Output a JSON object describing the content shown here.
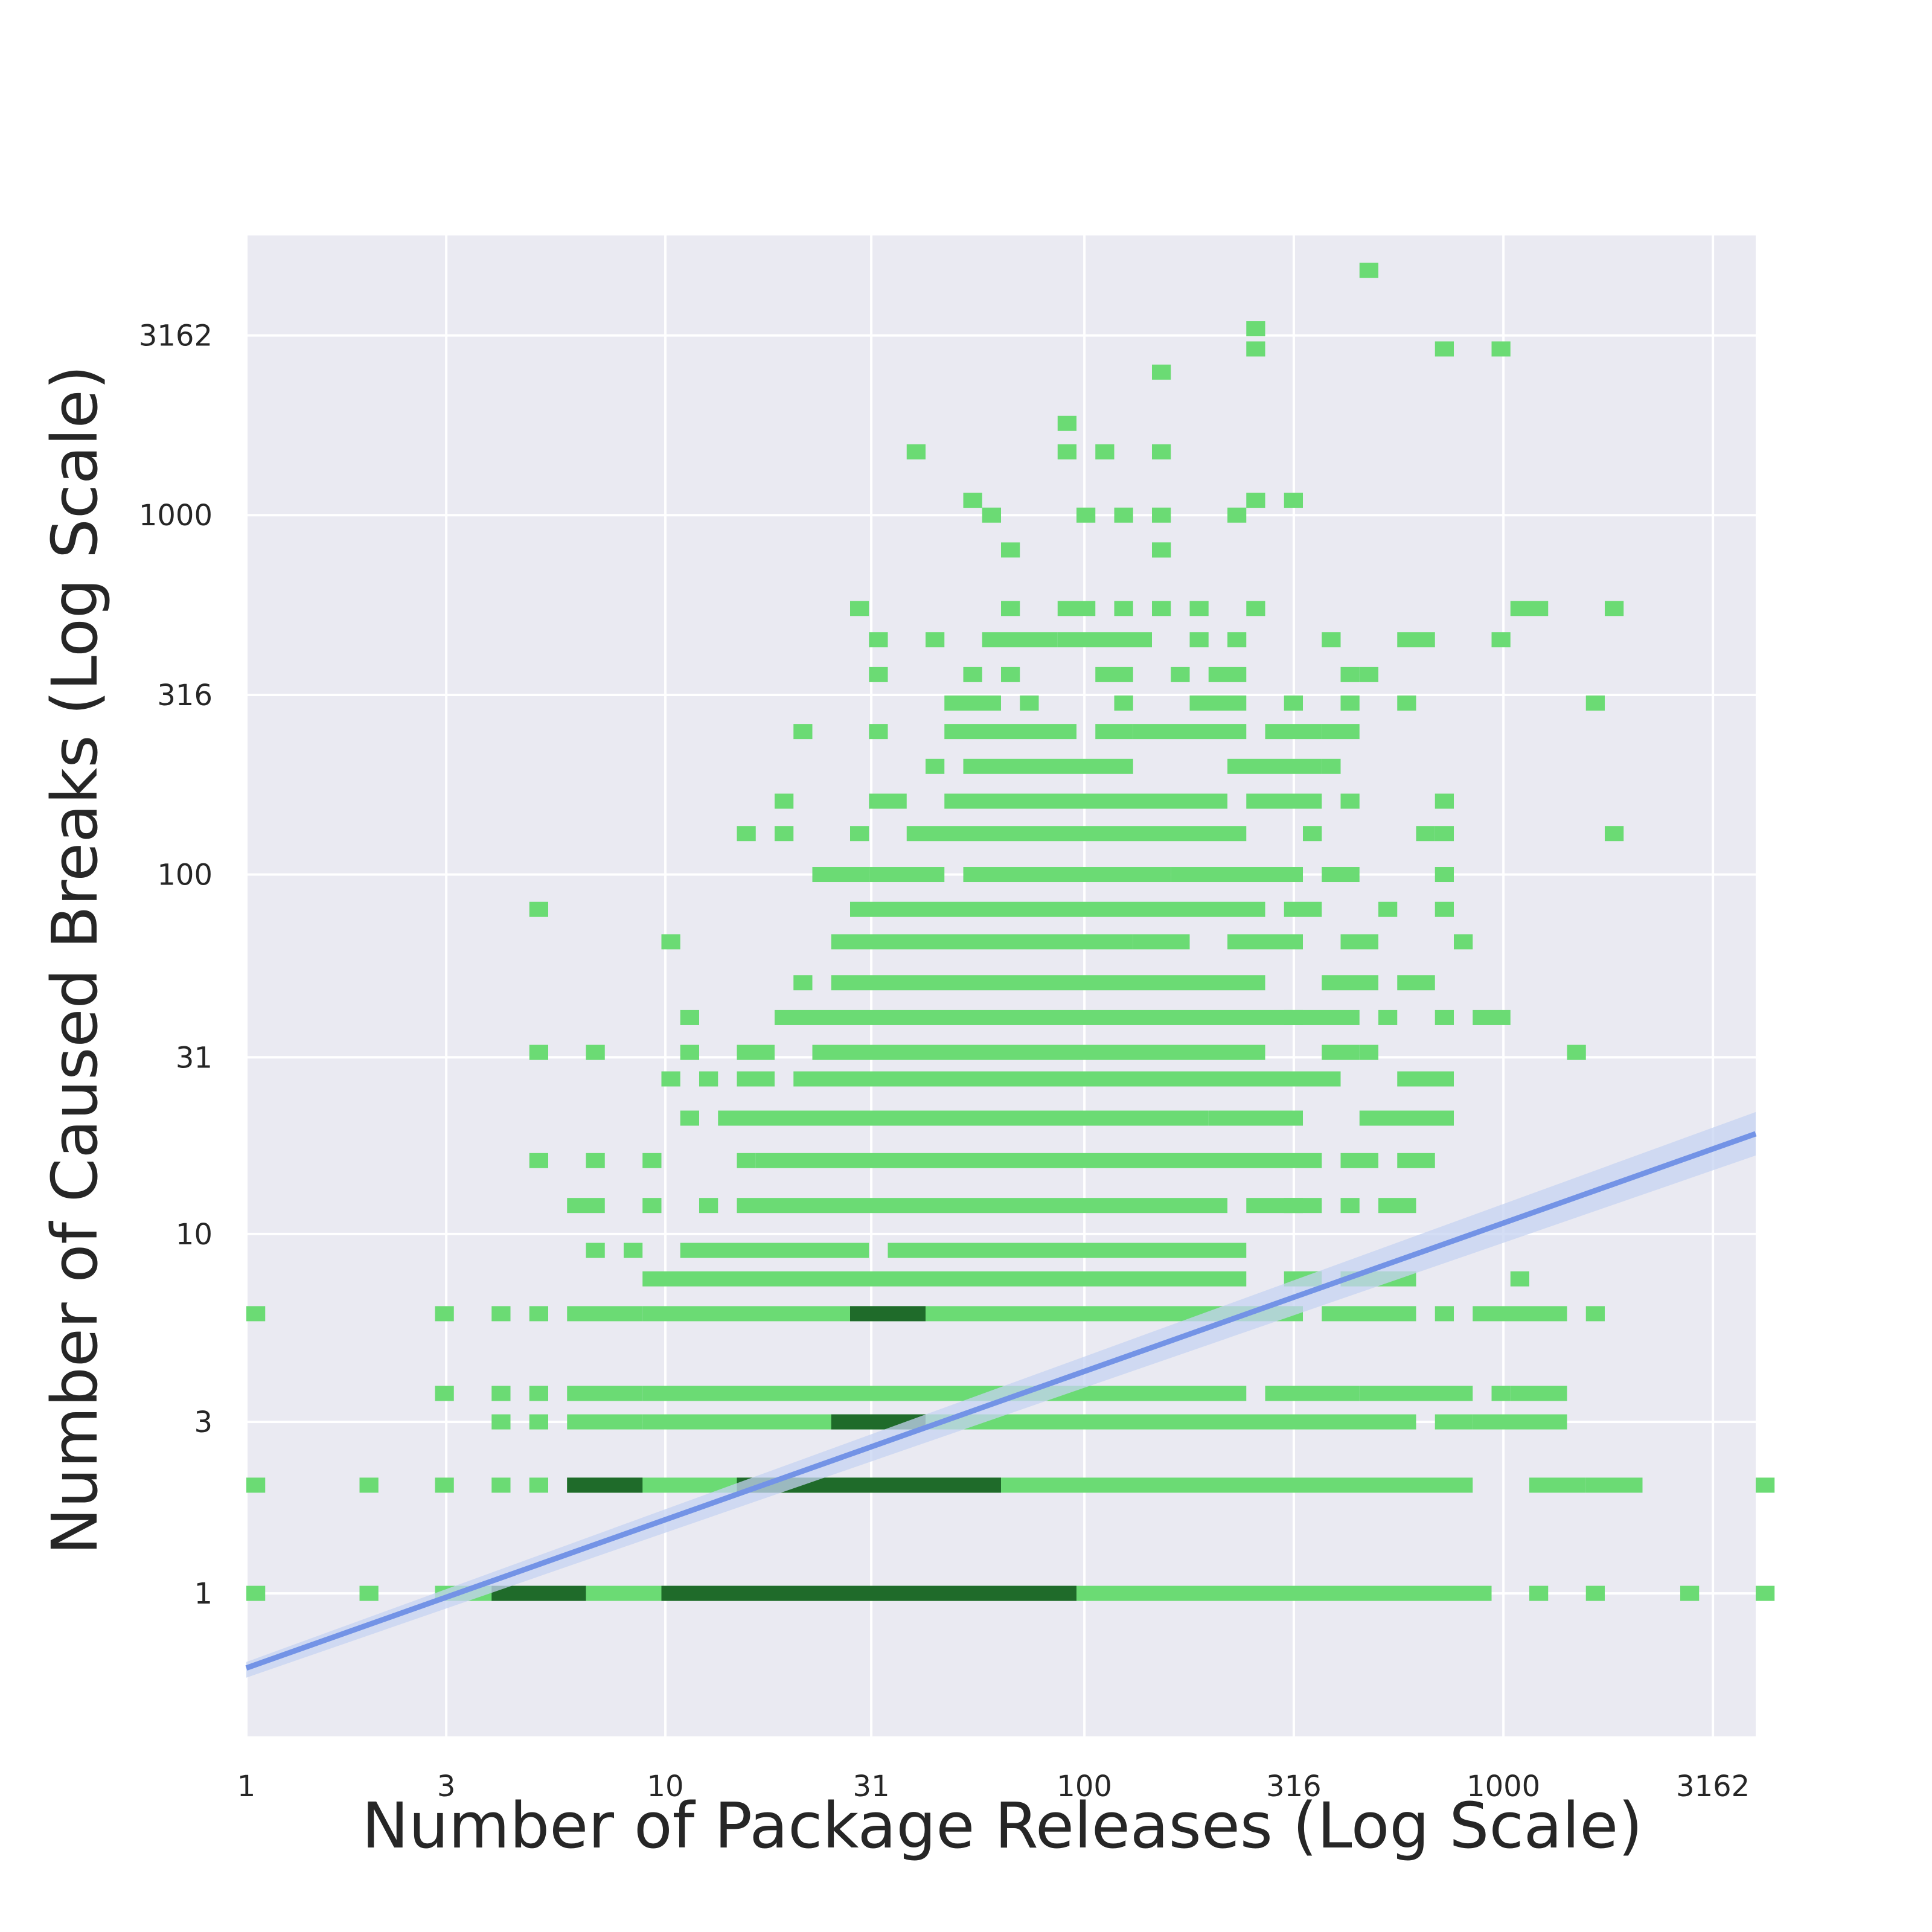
{
  "chart_data": {
    "type": "heatmap",
    "subtype": "2d-histogram-with-regression-line",
    "title": "",
    "xlabel": "Number of Package Releases (Log Scale)",
    "ylabel": "Number of Caused Breaks (Log Scale)",
    "x_scale": "log",
    "y_scale": "log",
    "xlim": [
      1,
      4000
    ],
    "ylim": [
      0.4,
      6000
    ],
    "x_ticks": [
      1,
      3,
      10,
      31,
      100,
      316,
      1000,
      3162
    ],
    "x_tick_labels": [
      "1",
      "3",
      "10",
      "31",
      "100",
      "316",
      "1000",
      "3162"
    ],
    "y_ticks": [
      1,
      3,
      10,
      31,
      100,
      316,
      1000,
      3162
    ],
    "y_tick_labels": [
      "1",
      "3",
      "10",
      "31",
      "100",
      "316",
      "1000",
      "3162"
    ],
    "grid": true,
    "background": "#eaeaf2",
    "grid_color": "#ffffff",
    "bin_color_light": "#6bdb74",
    "bin_color_dark": "#1f6b2a",
    "regression": {
      "x": [
        1,
        4000
      ],
      "y": [
        0.62,
        19
      ],
      "color": "#7393e6",
      "ci_color": "#c6d3f2"
    },
    "rows": [
      {
        "y": 1,
        "segments": [
          [
            1,
            1
          ],
          [
            2,
            2
          ],
          [
            3,
            900
          ],
          [
            1200,
            1200
          ],
          [
            1700,
            1700
          ],
          [
            2800,
            2800
          ],
          [
            4000,
            4000
          ]
        ],
        "dark": [
          [
            4,
            6
          ],
          [
            10,
            90
          ]
        ]
      },
      {
        "y": 2,
        "segments": [
          [
            1,
            1
          ],
          [
            2,
            2
          ],
          [
            3,
            3
          ],
          [
            4,
            4
          ],
          [
            5,
            5
          ],
          [
            6,
            800
          ],
          [
            1200,
            1500
          ],
          [
            1700,
            2000
          ],
          [
            4000,
            4000
          ]
        ],
        "dark": [
          [
            6,
            8
          ],
          [
            15,
            60
          ]
        ]
      },
      {
        "y": 3,
        "segments": [
          [
            4,
            4
          ],
          [
            5,
            5
          ],
          [
            6,
            8
          ],
          [
            9,
            320
          ],
          [
            350,
            600
          ],
          [
            700,
            800
          ],
          [
            900,
            1100
          ],
          [
            1200,
            1300
          ]
        ],
        "dark": [
          [
            25,
            40
          ]
        ]
      },
      {
        "y": 3.6,
        "segments": [
          [
            3,
            3
          ],
          [
            4,
            4
          ],
          [
            5,
            5
          ],
          [
            6,
            6
          ],
          [
            7,
            8
          ],
          [
            9,
            240
          ],
          [
            280,
            450
          ],
          [
            500,
            800
          ],
          [
            1000,
            1000
          ],
          [
            1150,
            1400
          ]
        ],
        "dark": []
      },
      {
        "y": 6,
        "segments": [
          [
            1,
            1
          ],
          [
            3,
            3
          ],
          [
            4,
            4
          ],
          [
            5,
            5
          ],
          [
            6,
            8
          ],
          [
            9,
            320
          ],
          [
            380,
            500
          ],
          [
            550,
            600
          ],
          [
            700,
            700
          ],
          [
            850,
            850
          ],
          [
            1000,
            1300
          ],
          [
            1600,
            1600
          ]
        ],
        "dark": [
          [
            30,
            40
          ]
        ]
      },
      {
        "y": 7.5,
        "segments": [
          [
            9,
            240
          ],
          [
            300,
            350
          ],
          [
            450,
            600
          ],
          [
            1100,
            1100
          ]
        ],
        "dark": []
      },
      {
        "y": 9,
        "segments": [
          [
            7,
            7
          ],
          [
            8,
            8
          ],
          [
            11,
            14
          ],
          [
            15,
            30
          ],
          [
            35,
            240
          ]
        ],
        "dark": []
      },
      {
        "y": 12,
        "segments": [
          [
            6,
            7
          ],
          [
            9,
            9
          ],
          [
            13,
            13
          ],
          [
            16,
            200
          ],
          [
            260,
            300
          ],
          [
            330,
            350
          ],
          [
            450,
            450
          ],
          [
            550,
            600
          ]
        ],
        "dark": []
      },
      {
        "y": 16,
        "segments": [
          [
            5,
            5
          ],
          [
            7,
            7
          ],
          [
            9,
            9
          ],
          [
            15,
            15
          ],
          [
            18,
            350
          ],
          [
            420,
            500
          ],
          [
            600,
            650
          ]
        ],
        "dark": []
      },
      {
        "y": 21,
        "segments": [
          [
            11,
            11
          ],
          [
            14,
            180
          ],
          [
            200,
            300
          ],
          [
            500,
            700
          ]
        ],
        "dark": []
      },
      {
        "y": 27,
        "segments": [
          [
            10,
            10
          ],
          [
            13,
            13
          ],
          [
            16,
            18
          ],
          [
            22,
            400
          ],
          [
            600,
            700
          ]
        ],
        "dark": []
      },
      {
        "y": 32,
        "segments": [
          [
            5,
            5
          ],
          [
            7,
            7
          ],
          [
            11,
            11
          ],
          [
            15,
            18
          ],
          [
            24,
            260
          ],
          [
            380,
            420
          ],
          [
            500,
            500
          ],
          [
            1500,
            1500
          ]
        ],
        "dark": []
      },
      {
        "y": 40,
        "segments": [
          [
            12,
            12
          ],
          [
            20,
            300
          ],
          [
            330,
            380
          ],
          [
            420,
            450
          ],
          [
            550,
            550
          ],
          [
            700,
            700
          ],
          [
            850,
            850
          ],
          [
            1000,
            1000
          ]
        ],
        "dark": []
      },
      {
        "y": 50,
        "segments": [
          [
            22,
            22
          ],
          [
            25,
            25
          ],
          [
            30,
            200
          ],
          [
            240,
            250
          ],
          [
            380,
            500
          ],
          [
            600,
            650
          ]
        ],
        "dark": []
      },
      {
        "y": 65,
        "segments": [
          [
            10,
            10
          ],
          [
            25,
            120
          ],
          [
            140,
            170
          ],
          [
            240,
            300
          ],
          [
            450,
            500
          ],
          [
            800,
            800
          ]
        ],
        "dark": []
      },
      {
        "y": 80,
        "segments": [
          [
            5,
            5
          ],
          [
            28,
            200
          ],
          [
            220,
            260
          ],
          [
            320,
            350
          ],
          [
            550,
            550
          ],
          [
            700,
            700
          ]
        ],
        "dark": []
      },
      {
        "y": 100,
        "segments": [
          [
            24,
            30
          ],
          [
            32,
            45
          ],
          [
            55,
            150
          ],
          [
            170,
            200
          ],
          [
            220,
            320
          ],
          [
            380,
            420
          ],
          [
            700,
            700
          ]
        ],
        "dark": []
      },
      {
        "y": 130,
        "segments": [
          [
            15,
            15
          ],
          [
            20,
            20
          ],
          [
            28,
            30
          ],
          [
            40,
            200
          ],
          [
            220,
            230
          ],
          [
            350,
            350
          ],
          [
            650,
            650
          ],
          [
            750,
            750
          ],
          [
            1800,
            1800
          ]
        ],
        "dark": []
      },
      {
        "y": 160,
        "segments": [
          [
            20,
            20
          ],
          [
            33,
            35
          ],
          [
            50,
            200
          ],
          [
            250,
            350
          ],
          [
            420,
            420
          ],
          [
            750,
            750
          ]
        ],
        "dark": []
      },
      {
        "y": 200,
        "segments": [
          [
            45,
            45
          ],
          [
            55,
            120
          ],
          [
            240,
            350
          ],
          [
            400,
            400
          ]
        ],
        "dark": []
      },
      {
        "y": 250,
        "segments": [
          [
            22,
            22
          ],
          [
            31,
            31
          ],
          [
            50,
            60
          ],
          [
            70,
            90
          ],
          [
            110,
            120
          ],
          [
            140,
            240
          ],
          [
            280,
            350
          ],
          [
            400,
            450
          ]
        ],
        "dark": []
      },
      {
        "y": 300,
        "segments": [
          [
            50,
            50
          ],
          [
            55,
            60
          ],
          [
            75,
            75
          ],
          [
            130,
            130
          ],
          [
            180,
            240
          ],
          [
            320,
            320
          ],
          [
            450,
            450
          ],
          [
            600,
            600
          ],
          [
            1600,
            1600
          ]
        ],
        "dark": []
      },
      {
        "y": 360,
        "segments": [
          [
            32,
            32
          ],
          [
            55,
            55
          ],
          [
            65,
            70
          ],
          [
            110,
            130
          ],
          [
            170,
            170
          ],
          [
            200,
            220
          ],
          [
            450,
            450
          ],
          [
            500,
            500
          ]
        ],
        "dark": []
      },
      {
        "y": 450,
        "segments": [
          [
            31,
            31
          ],
          [
            45,
            45
          ],
          [
            60,
            80
          ],
          [
            90,
            90
          ],
          [
            100,
            140
          ],
          [
            190,
            190
          ],
          [
            230,
            230
          ],
          [
            380,
            380
          ],
          [
            560,
            560
          ],
          [
            650,
            650
          ],
          [
            1000,
            1000
          ]
        ],
        "dark": []
      },
      {
        "y": 550,
        "segments": [
          [
            30,
            30
          ],
          [
            70,
            70
          ],
          [
            90,
            90
          ],
          [
            100,
            100
          ],
          [
            120,
            120
          ],
          [
            160,
            160
          ],
          [
            190,
            190
          ],
          [
            250,
            250
          ],
          [
            1100,
            1250
          ],
          [
            1800,
            1800
          ]
        ],
        "dark": []
      },
      {
        "y": 800,
        "segments": [
          [
            70,
            70
          ],
          [
            150,
            150
          ],
          [
            160,
            160
          ]
        ],
        "dark": []
      },
      {
        "y": 1000,
        "segments": [
          [
            60,
            60
          ],
          [
            100,
            100
          ],
          [
            130,
            130
          ],
          [
            155,
            155
          ],
          [
            230,
            230
          ]
        ],
        "dark": []
      },
      {
        "y": 1100,
        "segments": [
          [
            55,
            55
          ],
          [
            260,
            260
          ],
          [
            330,
            330
          ]
        ],
        "dark": []
      },
      {
        "y": 1500,
        "segments": [
          [
            40,
            40
          ],
          [
            90,
            90
          ],
          [
            110,
            110
          ],
          [
            160,
            160
          ]
        ],
        "dark": []
      },
      {
        "y": 1800,
        "segments": [
          [
            90,
            90
          ]
        ],
        "dark": []
      },
      {
        "y": 2500,
        "segments": [
          [
            160,
            160
          ]
        ],
        "dark": []
      },
      {
        "y": 2900,
        "segments": [
          [
            270,
            270
          ],
          [
            750,
            750
          ],
          [
            1000,
            1000
          ]
        ],
        "dark": []
      },
      {
        "y": 3300,
        "segments": [
          [
            250,
            250
          ]
        ],
        "dark": []
      },
      {
        "y": 4800,
        "segments": [
          [
            500,
            500
          ]
        ],
        "dark": []
      }
    ]
  }
}
